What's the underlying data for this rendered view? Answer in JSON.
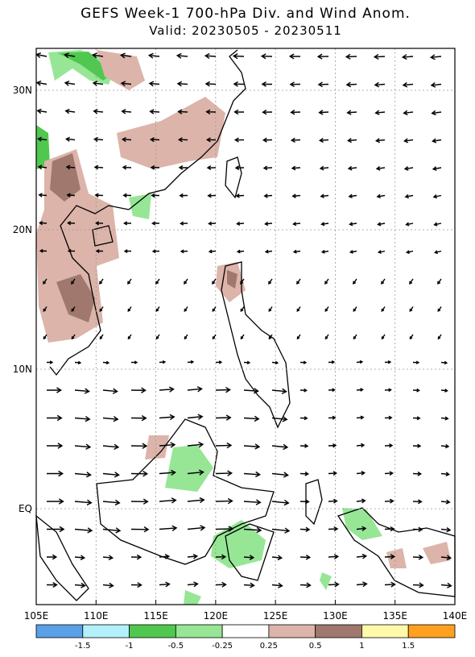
{
  "header": {
    "title": "GEFS Week-1 700-hPa Div. and Wind Anom.",
    "subtitle": "Valid: 20230505 - 20230511"
  },
  "map": {
    "lon_labels": [
      "105E",
      "110E",
      "115E",
      "120E",
      "125E",
      "130E",
      "135E",
      "140E"
    ],
    "lat_labels": [
      "30N",
      "20N",
      "10N",
      "EQ"
    ]
  },
  "colorbar": {
    "colors": [
      "#5aa0e6",
      "#b4f0fa",
      "#50c850",
      "#96e696",
      "#ffffff",
      "#dcb4aa",
      "#a0786e",
      "#fffaaa",
      "#ffa01e"
    ],
    "labels": [
      "-1.5",
      "-1",
      "-0.5",
      "-0.25",
      "0.25",
      "0.5",
      "1",
      "1.5"
    ]
  }
}
